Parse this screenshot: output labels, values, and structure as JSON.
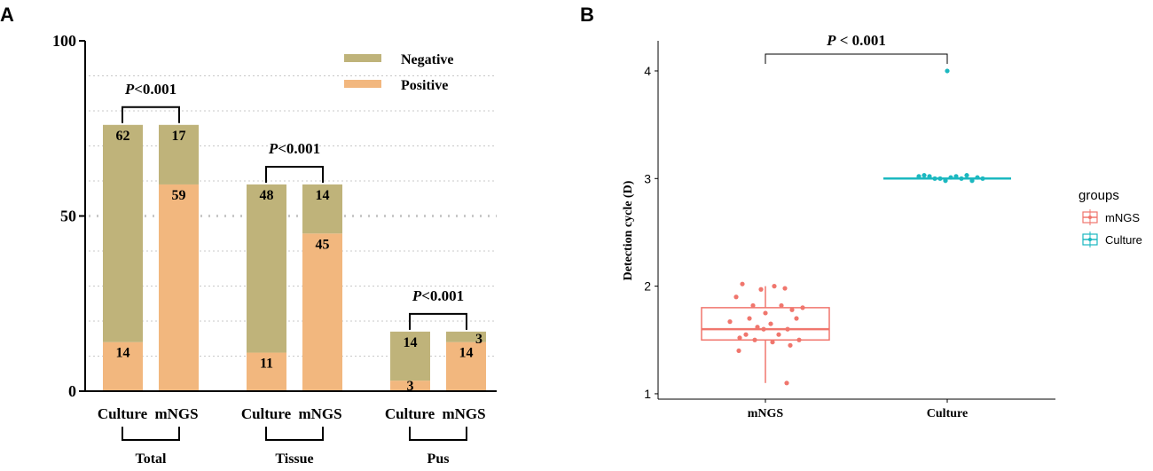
{
  "panels": {
    "a": "A",
    "b": "B"
  },
  "colors": {
    "negative": "#bfb37a",
    "positive": "#f2b77e",
    "mngs": "#f0766d",
    "culture": "#1cb8c0",
    "axis": "#000000",
    "grid": "#c8c8c8"
  },
  "chart_data": [
    {
      "type": "bar",
      "stacked": true,
      "ylim": [
        0,
        100
      ],
      "yticks": [
        "0",
        "50",
        "100"
      ],
      "grid_levels": [
        10,
        20,
        30,
        40,
        50,
        60,
        70,
        80,
        90
      ],
      "legend": {
        "placement": "top-right",
        "entries": [
          "Negative",
          "Positive"
        ]
      },
      "series": [
        {
          "name": "Positive",
          "values": [
            14,
            59,
            11,
            45,
            3,
            14
          ]
        },
        {
          "name": "Negative",
          "values": [
            62,
            17,
            48,
            14,
            14,
            3
          ]
        }
      ],
      "bars": [
        {
          "label": "Culture",
          "group": 0
        },
        {
          "label": "mNGS",
          "group": 0
        },
        {
          "label": "Culture",
          "group": 1
        },
        {
          "label": "mNGS",
          "group": 1
        },
        {
          "label": "Culture",
          "group": 2
        },
        {
          "label": "mNGS",
          "group": 2
        }
      ],
      "groups": [
        {
          "name": "Total",
          "pvalue": "P<0.001"
        },
        {
          "name": "Tissue",
          "pvalue": "P<0.001"
        },
        {
          "name": "Pus",
          "pvalue": "P<0.001"
        }
      ]
    },
    {
      "type": "box",
      "ylabel": "Detection cycle (D)",
      "ylim": [
        0.95,
        4.28
      ],
      "yticks": [
        1,
        2,
        3,
        4
      ],
      "categories": [
        "mNGS",
        "Culture"
      ],
      "legend": {
        "title": "groups",
        "placement": "right",
        "entries": [
          "mNGS",
          "Culture"
        ]
      },
      "pvalue": "P < 0.001",
      "boxes": [
        {
          "name": "mNGS",
          "q1": 1.5,
          "median": 1.6,
          "q3": 1.8,
          "whisker_low": 1.1,
          "whisker_high": 2.0
        },
        {
          "name": "Culture",
          "q1": 3.0,
          "median": 3.0,
          "q3": 3.0,
          "whisker_low": 3.0,
          "whisker_high": 3.0
        }
      ],
      "points": [
        {
          "group": "mNGS",
          "values": [
            2.02,
            2.0,
            1.97,
            1.98,
            1.9,
            1.82,
            1.8,
            1.82,
            1.78,
            1.75,
            1.7,
            1.7,
            1.67,
            1.65,
            1.62,
            1.6,
            1.6,
            1.55,
            1.55,
            1.52,
            1.5,
            1.5,
            1.48,
            1.45,
            1.4,
            1.1
          ]
        },
        {
          "group": "Culture",
          "values": [
            4.0,
            3.02,
            3.03,
            3.02,
            3.0,
            3.0,
            2.98,
            3.01,
            3.02,
            3.0,
            3.03,
            2.98,
            3.01,
            3.0
          ]
        }
      ]
    }
  ]
}
